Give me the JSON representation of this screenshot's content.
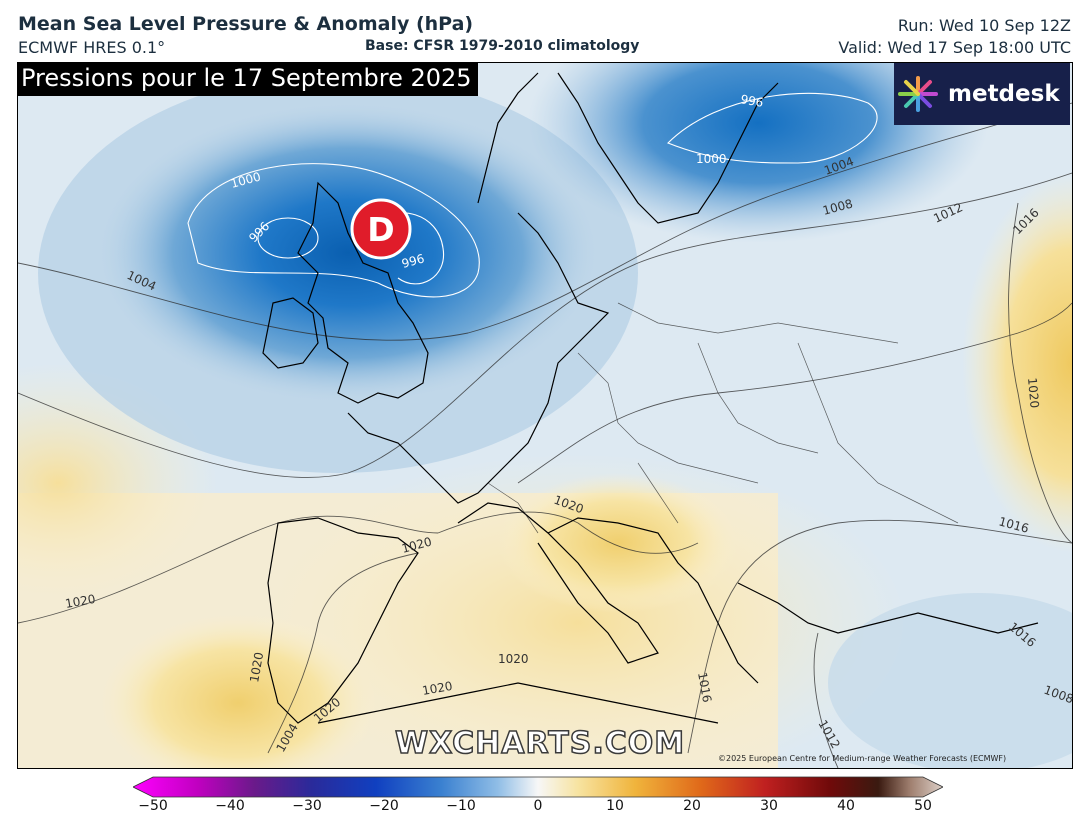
{
  "header": {
    "title": "Mean Sea Level Pressure & Anomaly (hPa)",
    "model": "ECMWF HRES 0.1°",
    "base": "Base: CFSR 1979-2010 climatology",
    "run": "Run: Wed 10 Sep 12Z",
    "valid": "Valid: Wed 17 Sep 18:00 UTC"
  },
  "map": {
    "overlay_title": "Pressions pour le 17 Septembre 2025",
    "low_marker": "D",
    "isobar_labels": [
      "996",
      "996",
      "996",
      "1000",
      "1000",
      "1004",
      "1004",
      "1008",
      "1012",
      "1016",
      "1016",
      "1020",
      "1020",
      "1020",
      "1020",
      "1020",
      "1020",
      "1020",
      "1020",
      "1016",
      "1016",
      "1012",
      "1008",
      "1004"
    ],
    "watermark": "WXCHARTS.COM",
    "copyright": "©2025 European Centre for Medium-range Weather Forecasts (ECMWF)",
    "brand": "metdesk",
    "colors": {
      "low_marker": "#e01c2a",
      "negative_anomaly": "#1a6fbf",
      "positive_anomaly": "#f2d27a",
      "neutral": "#f4f7fa"
    }
  },
  "colorbar": {
    "ticks": [
      "−50",
      "−40",
      "−30",
      "−20",
      "−10",
      "0",
      "10",
      "20",
      "30",
      "40",
      "50"
    ],
    "min": -50,
    "max": 50
  }
}
